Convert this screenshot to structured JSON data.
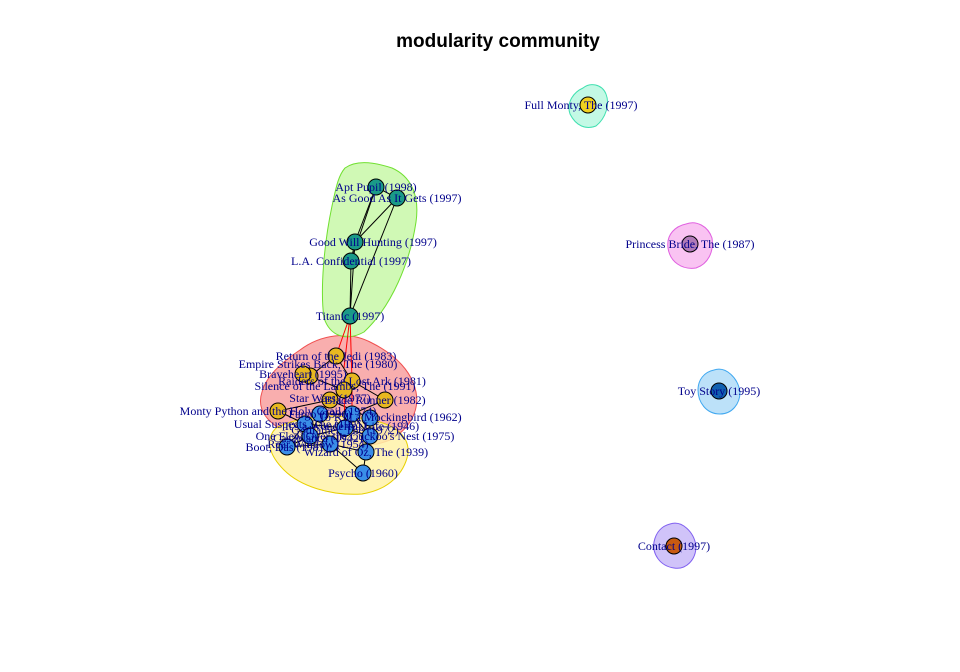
{
  "title": "modularity community",
  "groups": [
    {
      "id": "g-red",
      "fill": "#f8a0a0",
      "stroke": "#f05050"
    },
    {
      "id": "g-yellow",
      "fill": "#fff2a8",
      "stroke": "#e8d000"
    },
    {
      "id": "g-green",
      "fill": "#c8f8a8",
      "stroke": "#70e030"
    },
    {
      "id": "g-mint",
      "fill": "#b8f8e0",
      "stroke": "#40e0b0"
    },
    {
      "id": "g-pink",
      "fill": "#f8b8f0",
      "stroke": "#e060e0"
    },
    {
      "id": "g-sky",
      "fill": "#b0dcf8",
      "stroke": "#40a8f0"
    },
    {
      "id": "g-violet",
      "fill": "#c8b8f8",
      "stroke": "#8060f0"
    }
  ],
  "colors": {
    "teal": "#1a9a88",
    "gold": "#e8b820",
    "blue": "#3a8ee8",
    "darkblue": "#1060b0",
    "mauve": "#b07ab8",
    "orange": "#c85a10",
    "yellow": "#f0d020"
  },
  "nodes": [
    {
      "label": "Apt Pupil (1998)",
      "color": "#1a9a88"
    },
    {
      "label": "As Good As It Gets (1997)",
      "color": "#1a9a88"
    },
    {
      "label": "Good Will Hunting (1997)",
      "color": "#1a9a88"
    },
    {
      "label": "L.A. Confidential (1997)",
      "color": "#1a9a88"
    },
    {
      "label": "Titanic (1997)",
      "color": "#1a9a88"
    },
    {
      "label": "Return of the Jedi (1983)",
      "color": "#e8b820"
    },
    {
      "label": "Empire Strikes Back, The (1980)",
      "color": "#e8b820"
    },
    {
      "label": "Braveheart (1995)",
      "color": "#e8b820"
    },
    {
      "label": "Raiders of the Lost Ark (1981)",
      "color": "#e8b820"
    },
    {
      "label": "Silence of the Lambs, The (1991)",
      "color": "#e8b820"
    },
    {
      "label": "Star Wars (1977)",
      "color": "#e8b820"
    },
    {
      "label": "Blade Runner (1982)",
      "color": "#e8b820"
    },
    {
      "label": "Monty Python and the Holy Grail (1974)",
      "color": "#e8b820"
    },
    {
      "label": "To Kill a Mockingbird (1962)",
      "color": "#3a8ee8"
    },
    {
      "label": "Usual Suspects, The (1995)",
      "color": "#3a8ee8"
    },
    {
      "label": "It's a Wonderful Life (1946)",
      "color": "#3a8ee8"
    },
    {
      "label": "Godfather, The (1972)",
      "color": "#3a8ee8"
    },
    {
      "label": "One Flew Over the Cuckoo's Nest (1975)",
      "color": "#3a8ee8"
    },
    {
      "label": "Casablanca (1942)",
      "color": "#3a8ee8"
    },
    {
      "label": "Boot, Das (1981)",
      "color": "#3a8ee8"
    },
    {
      "label": "Fargo (1996)",
      "color": "#3a8ee8"
    },
    {
      "label": "Rear Window (1954)",
      "color": "#3a8ee8"
    },
    {
      "label": "Wizard of Oz, The (1939)",
      "color": "#3a8ee8"
    },
    {
      "label": "Psycho (1960)",
      "color": "#3a8ee8"
    },
    {
      "label": "Full Monty, The (1997)",
      "color": "#f0d020"
    },
    {
      "label": "Princess Bride, The (1987)",
      "color": "#b07ab8"
    },
    {
      "label": "Toy Story (1995)",
      "color": "#1060b0"
    },
    {
      "label": "Contact (1997)",
      "color": "#c85a10"
    }
  ]
}
